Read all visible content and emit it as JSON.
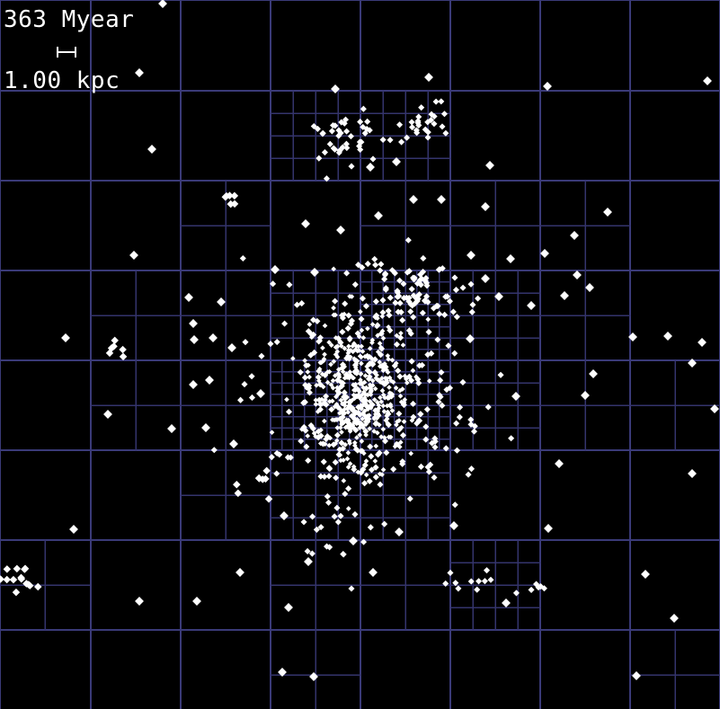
{
  "overlay": {
    "time_label": "363 Myear",
    "scale_label": "1.00 kpc"
  },
  "colors": {
    "background": "#000000",
    "grid": "#3a3a78",
    "particles": "#ffffff"
  }
}
